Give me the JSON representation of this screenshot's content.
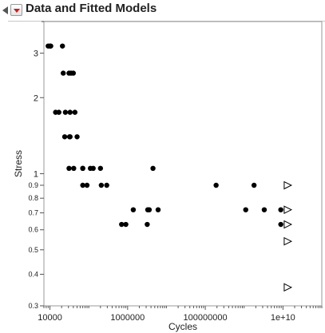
{
  "report": {
    "title": "Data and Fitted Models"
  },
  "chart_data": {
    "type": "scatter",
    "title": "Data and Fitted Models",
    "xlabel": "Cycles",
    "ylabel": "Stress",
    "xscale": "log",
    "yscale": "log",
    "xlim": [
      7000,
      100000000000
    ],
    "ylim": [
      0.3,
      4.0
    ],
    "x_ticks": [
      {
        "value": 10000,
        "label": "10000"
      },
      {
        "value": 1000000,
        "label": "1000000"
      },
      {
        "value": 100000000,
        "label": "100000000"
      },
      {
        "value": 10000000000,
        "label": "1e+10"
      }
    ],
    "y_ticks": [
      {
        "value": 0.3,
        "label": "0.3"
      },
      {
        "value": 0.4,
        "label": "0.4"
      },
      {
        "value": 0.5,
        "label": "0.5"
      },
      {
        "value": 0.6,
        "label": "0.6"
      },
      {
        "value": 0.7,
        "label": "0.7"
      },
      {
        "value": 0.8,
        "label": "0.8"
      },
      {
        "value": 0.9,
        "label": "0.9"
      },
      {
        "value": 1,
        "label": "1"
      },
      {
        "value": 2,
        "label": "2"
      },
      {
        "value": 3,
        "label": "3"
      }
    ],
    "grid": false,
    "legend": "none",
    "series": [
      {
        "marker": "circle",
        "color": "#000000",
        "points": [
          [
            9000,
            3.2
          ],
          [
            10000,
            3.2
          ],
          [
            10500,
            3.2
          ],
          [
            21000,
            3.2
          ],
          [
            22000,
            2.5
          ],
          [
            31000,
            2.5
          ],
          [
            35000,
            2.5
          ],
          [
            40000,
            2.5
          ],
          [
            14000,
            1.75
          ],
          [
            17000,
            1.75
          ],
          [
            25000,
            1.75
          ],
          [
            33000,
            1.75
          ],
          [
            44000,
            1.75
          ],
          [
            24000,
            1.4
          ],
          [
            32000,
            1.4
          ],
          [
            33000,
            1.4
          ],
          [
            50000,
            1.4
          ],
          [
            31000,
            1.05
          ],
          [
            41000,
            1.05
          ],
          [
            70000,
            1.05
          ],
          [
            110000,
            1.05
          ],
          [
            70000,
            0.9
          ],
          [
            90000,
            0.9
          ],
          [
            70000,
            1.05
          ],
          [
            130000,
            1.05
          ],
          [
            200000,
            1.05
          ],
          [
            4500000,
            1.05
          ],
          [
            1400000,
            0.72
          ],
          [
            3300000,
            0.72
          ],
          [
            3600000,
            0.72
          ],
          [
            6100000,
            0.72
          ],
          [
            210000,
            0.9
          ],
          [
            290000,
            0.9
          ],
          [
            700000,
            0.63
          ],
          [
            900000,
            0.63
          ],
          [
            3200000,
            0.63
          ],
          [
            190000000,
            0.9
          ],
          [
            1800000000,
            0.9
          ],
          [
            1100000000,
            0.72
          ],
          [
            3300000000,
            0.72
          ],
          [
            8800000000,
            0.72
          ],
          [
            8800000000,
            0.63
          ]
        ]
      },
      {
        "marker": "triangle-right-open",
        "color": "#000000",
        "points": [
          [
            13000000000,
            0.9
          ],
          [
            13000000000,
            0.72
          ],
          [
            13000000000,
            0.63
          ],
          [
            13000000000,
            0.54
          ],
          [
            13000000000,
            0.355
          ]
        ]
      }
    ]
  }
}
